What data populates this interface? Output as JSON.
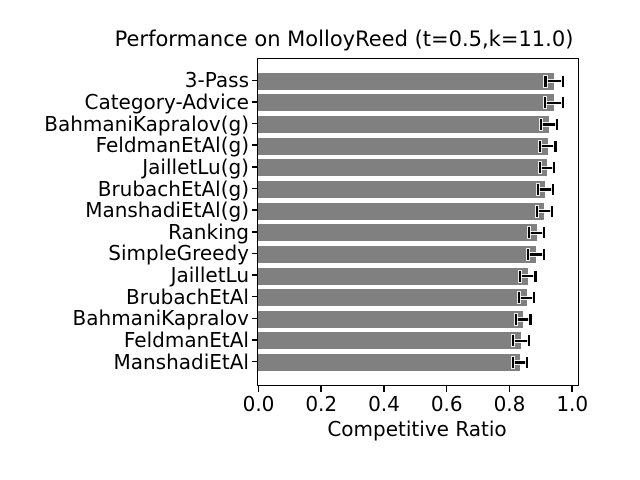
{
  "chart_data": {
    "type": "bar",
    "orientation": "horizontal",
    "title": "Performance on MolloyReed (t=0.5,k=11.0)",
    "xlabel": "Competitive Ratio",
    "ylabel": "",
    "xlim": [
      0,
      1.02
    ],
    "x_ticks": [
      0.0,
      0.2,
      0.4,
      0.6,
      0.8,
      1.0
    ],
    "x_tick_labels": [
      "0.0",
      "0.2",
      "0.4",
      "0.6",
      "0.8",
      "1.0"
    ],
    "grid": false,
    "legend": null,
    "bar_color": "#808080",
    "error_color": "#000000",
    "categories": [
      "3-Pass",
      "Category-Advice",
      "BahmaniKapralov(g)",
      "FeldmanEtAl(g)",
      "JailletLu(g)",
      "BrubachEtAl(g)",
      "ManshadiEtAl(g)",
      "Ranking",
      "SimpleGreedy",
      "JailletLu",
      "BrubachEtAl",
      "BahmaniKapralov",
      "FeldmanEtAl",
      "ManshadiEtAl"
    ],
    "values": [
      0.944,
      0.943,
      0.928,
      0.923,
      0.921,
      0.916,
      0.913,
      0.888,
      0.886,
      0.86,
      0.856,
      0.846,
      0.838,
      0.835
    ],
    "errors": [
      0.028,
      0.029,
      0.026,
      0.025,
      0.022,
      0.024,
      0.024,
      0.024,
      0.026,
      0.024,
      0.024,
      0.023,
      0.025,
      0.022
    ]
  }
}
